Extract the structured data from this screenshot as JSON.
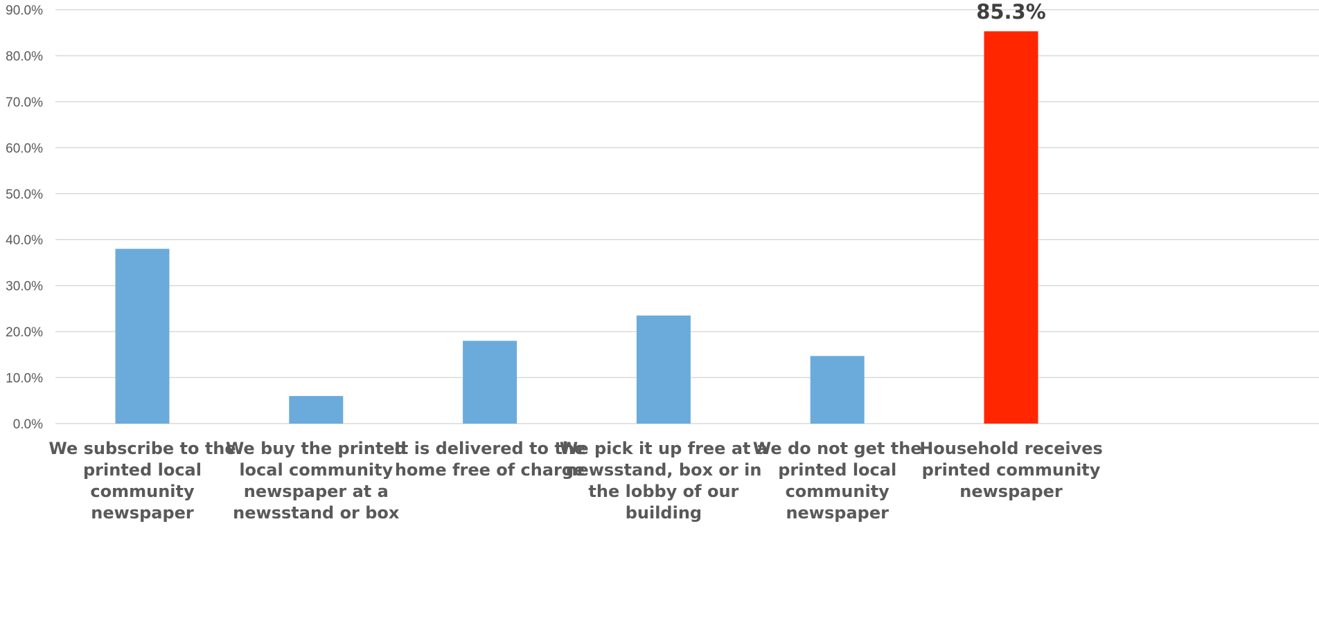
{
  "chart_data": {
    "type": "bar",
    "categories": [
      "We subscribe to the printed local community newspaper",
      "We buy the printed local community newspaper at a newsstand or box",
      "It is delivered to the home free of charge",
      "We pick it up free at a newsstand, box or in the lobby of our building",
      "We do not get the printed local community newspaper",
      "Household receives printed community newspaper"
    ],
    "category_lines": [
      [
        "We subscribe to the",
        "printed local",
        "community",
        "newspaper"
      ],
      [
        "We buy the printed",
        "local community",
        "newspaper at a",
        "newsstand or box"
      ],
      [
        "It is delivered to the",
        "home free of charge"
      ],
      [
        "We pick it up free at a",
        "newsstand, box or in",
        "the lobby of our",
        "building"
      ],
      [
        "We do not get the",
        "printed local",
        "community",
        "newspaper"
      ],
      [
        "Household receives",
        "printed community",
        "newspaper"
      ]
    ],
    "values": [
      38.0,
      6.0,
      18.0,
      23.5,
      14.7,
      85.3
    ],
    "data_labels": [
      "",
      "",
      "",
      "",
      "",
      "85.3%"
    ],
    "colors": [
      "#6aabdb",
      "#6aabdb",
      "#6aabdb",
      "#6aabdb",
      "#6aabdb",
      "#ff2600"
    ],
    "title": "",
    "xlabel": "",
    "ylabel": "",
    "ylim": [
      0,
      90
    ],
    "yticks": [
      0,
      10,
      20,
      30,
      40,
      50,
      60,
      70,
      80,
      90
    ],
    "ytick_labels": [
      "0.0%",
      "10.0%",
      "20.0%",
      "30.0%",
      "40.0%",
      "50.0%",
      "60.0%",
      "70.0%",
      "80.0%",
      "90.0%"
    ],
    "grid": true,
    "legend": "none",
    "gridline_color": "#d9d9d9"
  }
}
